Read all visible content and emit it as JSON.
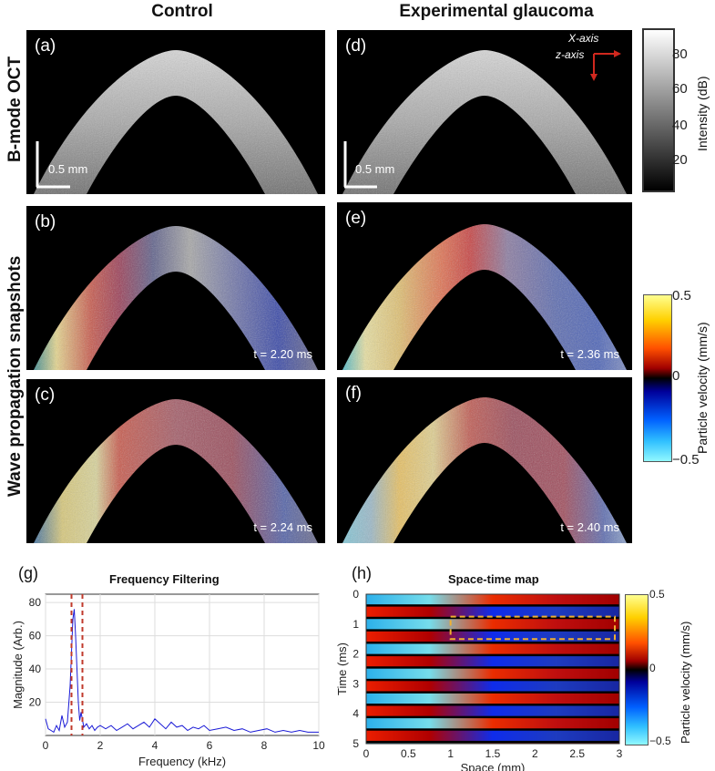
{
  "columns": {
    "control": "Control",
    "glaucoma": "Experimental glaucoma"
  },
  "rows": {
    "bmode": "B-mode OCT",
    "wave": "Wave propagation snapshots"
  },
  "panels": {
    "a": "(a)",
    "b": "(b)",
    "c": "(c)",
    "d": "(d)",
    "e": "(e)",
    "f": "(f)",
    "g": "(g)",
    "h": "(h)"
  },
  "scale_bar": "0.5 mm",
  "axes_inset": {
    "x": "X-axis",
    "z": "z-axis"
  },
  "times": {
    "b": "t = 2.20 ms",
    "c": "t = 2.24 ms",
    "e": "t = 2.36 ms",
    "f": "t = 2.40 ms"
  },
  "intensity_bar": {
    "label": "Intensity (dB)",
    "ticks": [
      "80",
      "60",
      "40",
      "20"
    ]
  },
  "velocity_bar": {
    "label": "Particle velocity (mm/s)",
    "ticks": [
      "0.5",
      "0",
      "−0.5"
    ]
  },
  "colors": {
    "velocity_pos": "#ffff80",
    "velocity_neg": "#7ff5ff",
    "marker": "#c0392b",
    "trace": "#1a1ad6",
    "box": "#f0b030"
  },
  "chart_data": [
    {
      "type": "line",
      "title": "Frequency Filtering",
      "xlabel": "Frequency (kHz)",
      "ylabel": "Magnitude (Arb.)",
      "xlim": [
        0,
        10
      ],
      "ylim": [
        0,
        85
      ],
      "xticks": [
        "0",
        "2",
        "4",
        "6",
        "8",
        "10"
      ],
      "yticks": [
        "80",
        "60",
        "40",
        "20"
      ],
      "filter_band": [
        0.95,
        1.35
      ],
      "series": [
        {
          "name": "spectrum",
          "x": [
            0,
            0.1,
            0.2,
            0.3,
            0.4,
            0.5,
            0.6,
            0.7,
            0.8,
            0.9,
            1.0,
            1.05,
            1.1,
            1.15,
            1.2,
            1.25,
            1.3,
            1.4,
            1.5,
            1.6,
            1.7,
            1.8,
            1.9,
            2.0,
            2.2,
            2.4,
            2.6,
            2.8,
            3.0,
            3.2,
            3.4,
            3.6,
            3.8,
            4.0,
            4.2,
            4.4,
            4.6,
            4.8,
            5.0,
            5.2,
            5.4,
            5.6,
            5.8,
            6.0,
            6.3,
            6.6,
            6.9,
            7.2,
            7.5,
            7.8,
            8.1,
            8.4,
            8.7,
            9.0,
            9.3,
            9.6,
            10.0
          ],
          "y": [
            10,
            4,
            3,
            2,
            6,
            3,
            12,
            5,
            8,
            30,
            70,
            76,
            60,
            40,
            20,
            9,
            14,
            5,
            7,
            4,
            6,
            3,
            5,
            6,
            4,
            6,
            3,
            5,
            7,
            4,
            6,
            8,
            5,
            10,
            7,
            4,
            8,
            5,
            6,
            3,
            5,
            4,
            6,
            3,
            4,
            5,
            3,
            4,
            2,
            3,
            4,
            2,
            3,
            2,
            3,
            2,
            2
          ]
        }
      ]
    },
    {
      "type": "heatmap",
      "title": "Space-time map",
      "xlabel": "Space (mm)",
      "ylabel": "Time (ms)",
      "xlim": [
        0,
        3
      ],
      "ylim": [
        0,
        5
      ],
      "xticks": [
        "0",
        "0.5",
        "1",
        "1.5",
        "2",
        "2.5",
        "3"
      ],
      "yticks": [
        "0",
        "1",
        "2",
        "3",
        "4",
        "5"
      ],
      "colorbar": {
        "label": "Particle velocity (mm/s)",
        "ticks": [
          "0.5",
          "0",
          "−0.5"
        ]
      },
      "period_ms": 0.83,
      "roi": {
        "x": [
          1,
          3
        ],
        "y": [
          0.75,
          1.5
        ]
      }
    }
  ]
}
